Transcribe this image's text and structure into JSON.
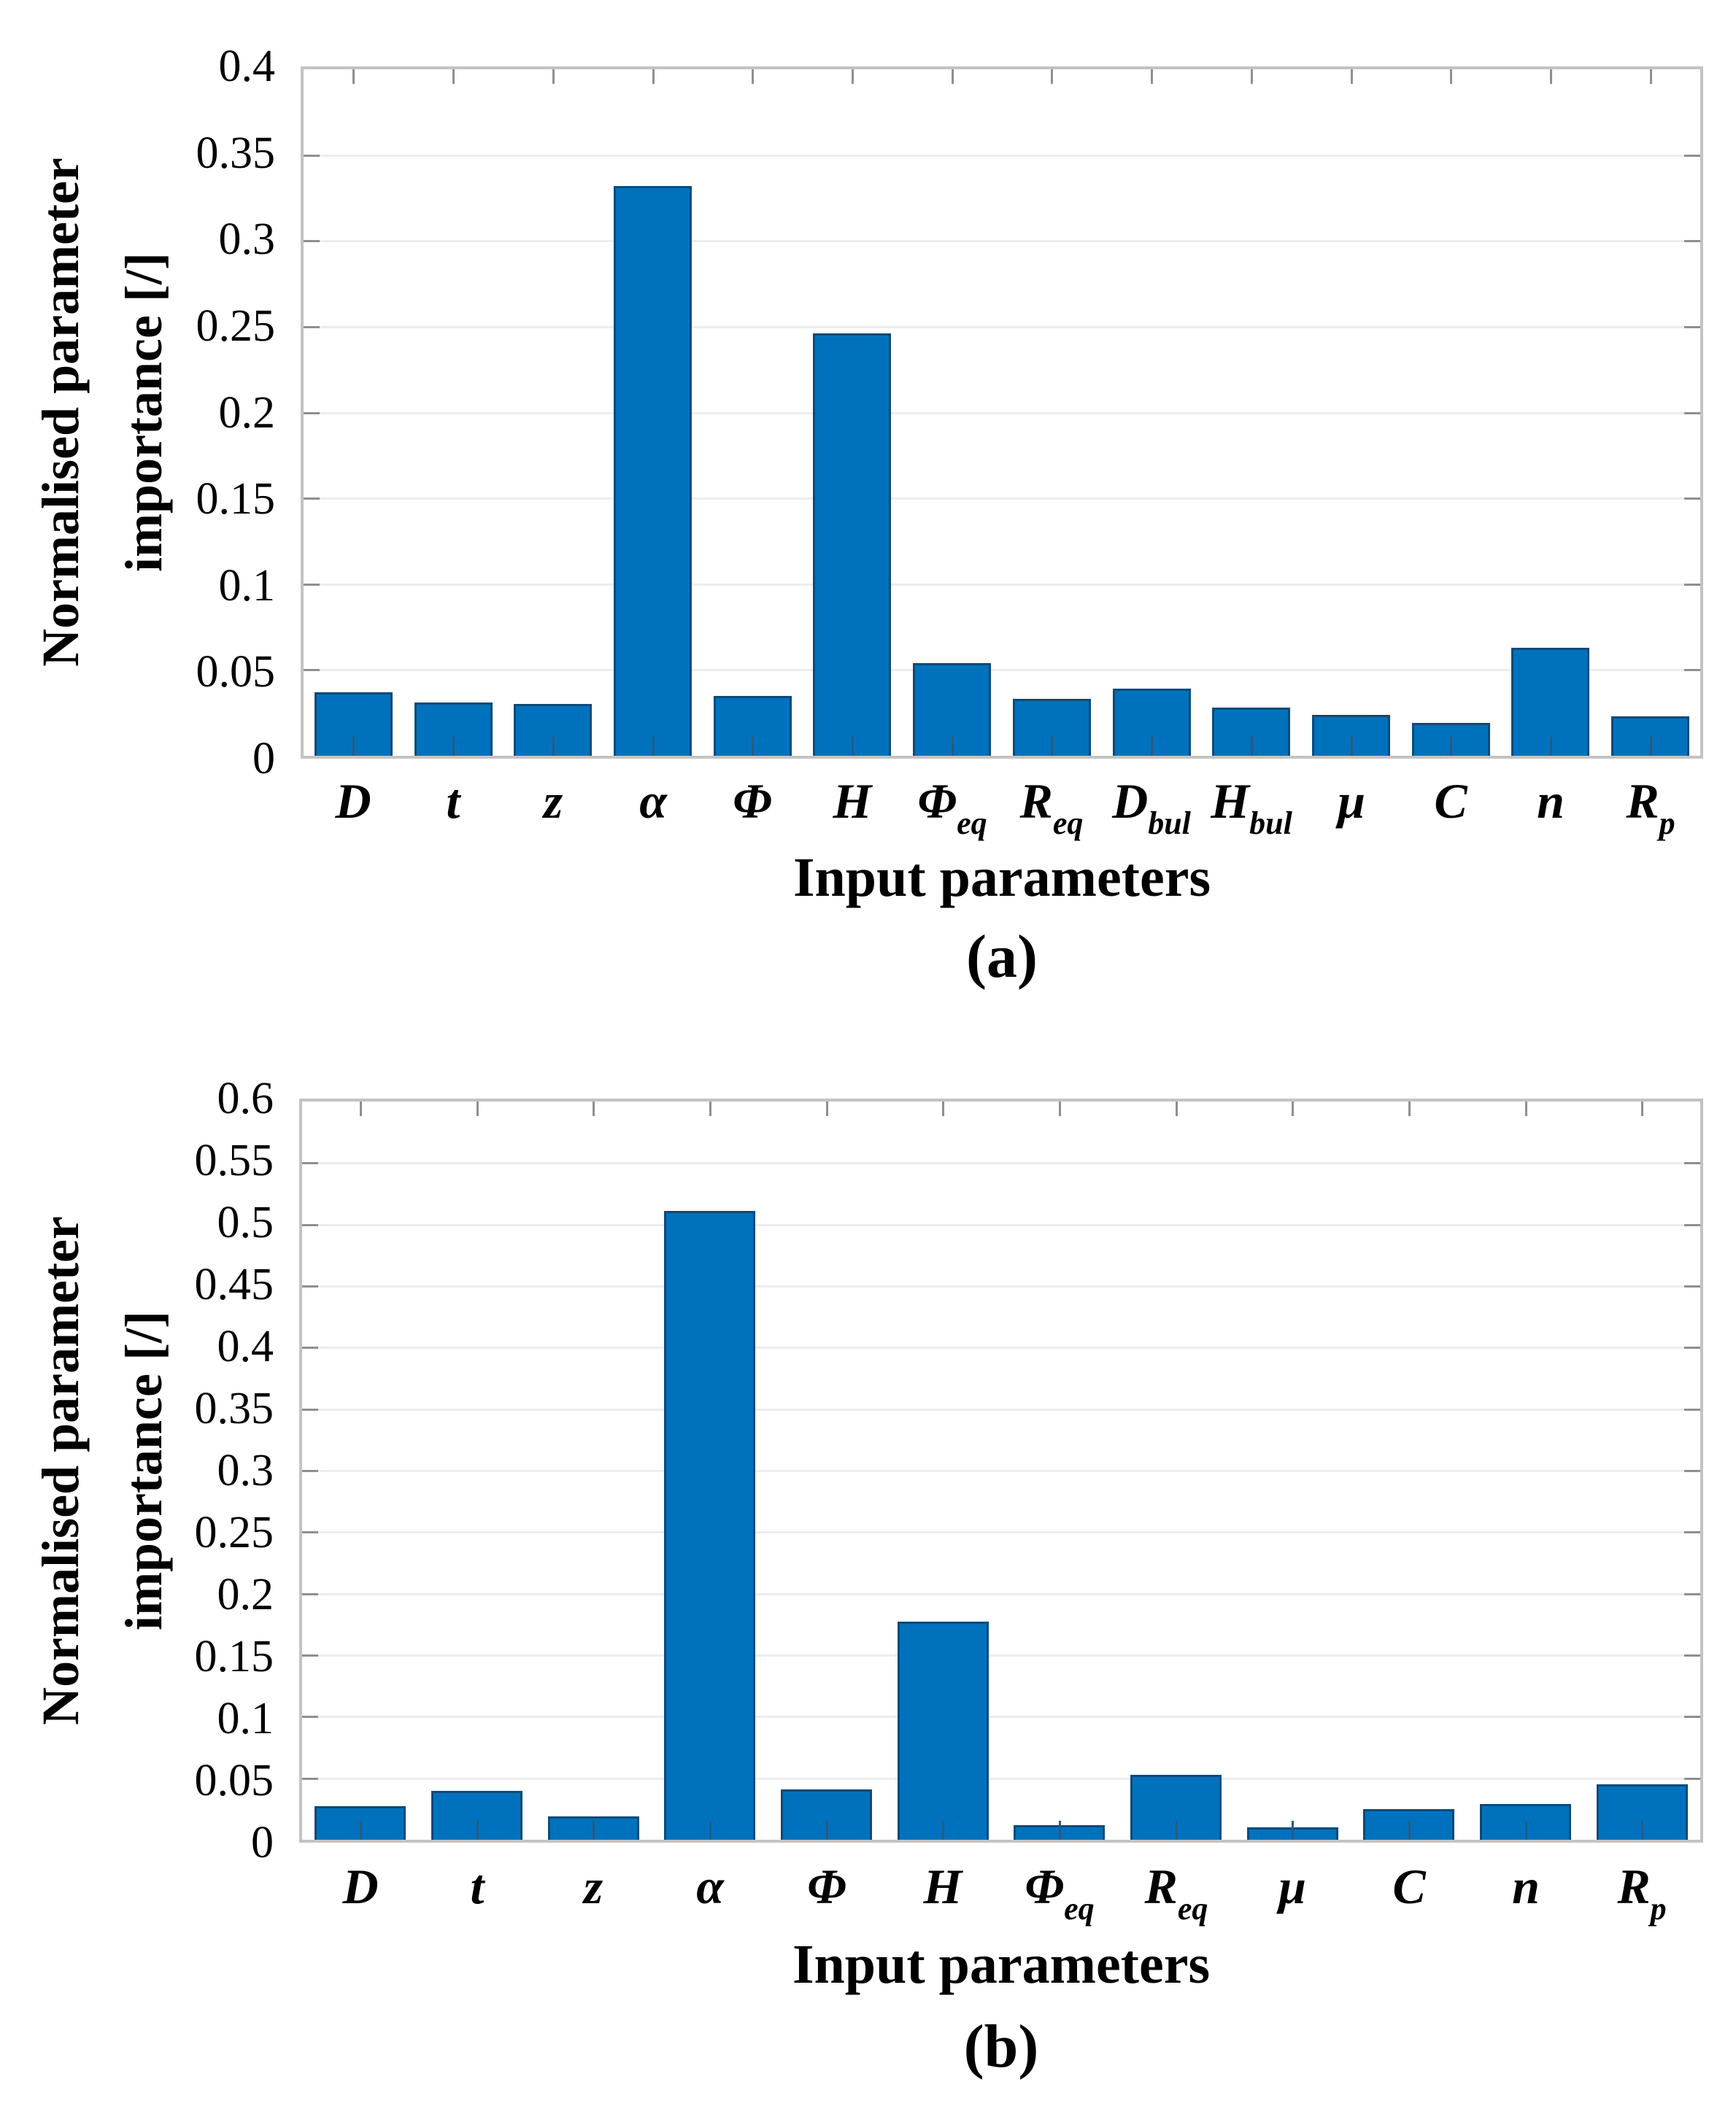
{
  "style": {
    "bar_fill": "#0072BD",
    "bar_edge": "#0d4a7a",
    "grid_color": "#ececec",
    "axis_box_color": "#c3c3c3",
    "tick_color": "#8f8f8f",
    "bar_tick_color": "#2a5a84",
    "text_color": "#000000",
    "background": "#ffffff"
  },
  "chart_data": [
    {
      "panel": "(a)",
      "type": "bar",
      "title": "",
      "xlabel": "Input parameters",
      "ylabel": "Normalised parameter importance [/]",
      "ylabel_lines": [
        "Normalised parameter",
        "importance [/]"
      ],
      "categories": [
        "D",
        "t",
        "z",
        "α",
        "Φ",
        "H",
        "Φ_eq",
        "R_eq",
        "D_bul",
        "H_bul",
        "μ",
        "C",
        "n",
        "R_p"
      ],
      "categories_rich": [
        {
          "base": "D",
          "sub": ""
        },
        {
          "base": "t",
          "sub": ""
        },
        {
          "base": "z",
          "sub": ""
        },
        {
          "base": "α",
          "sub": ""
        },
        {
          "base": "Φ",
          "sub": ""
        },
        {
          "base": "H",
          "sub": ""
        },
        {
          "base": "Φ",
          "sub": "eq"
        },
        {
          "base": "R",
          "sub": "eq"
        },
        {
          "base": "D",
          "sub": "bul"
        },
        {
          "base": "H",
          "sub": "bul"
        },
        {
          "base": "μ",
          "sub": ""
        },
        {
          "base": "C",
          "sub": ""
        },
        {
          "base": "n",
          "sub": ""
        },
        {
          "base": "R",
          "sub": "p"
        }
      ],
      "values": [
        0.037,
        0.031,
        0.03,
        0.332,
        0.035,
        0.246,
        0.054,
        0.033,
        0.039,
        0.028,
        0.024,
        0.019,
        0.063,
        0.023
      ],
      "ylim": [
        0,
        0.4
      ],
      "ytick_step": 0.05,
      "ytick_labels": [
        "0.4",
        "0.35",
        "0.3",
        "0.25",
        "0.2",
        "0.15",
        "0.1",
        "0.05",
        "0"
      ],
      "grid": "horizontal",
      "legend": "none",
      "bar_width_fraction": 0.78
    },
    {
      "panel": "(b)",
      "type": "bar",
      "title": "",
      "xlabel": "Input parameters",
      "ylabel": "Normalised parameter importance [/]",
      "ylabel_lines": [
        "Normalised parameter",
        "importance [/]"
      ],
      "categories": [
        "D",
        "t",
        "z",
        "α",
        "Φ",
        "H",
        "Φ_eq",
        "R_eq",
        "μ",
        "C",
        "n",
        "R_p"
      ],
      "categories_rich": [
        {
          "base": "D",
          "sub": ""
        },
        {
          "base": "t",
          "sub": ""
        },
        {
          "base": "z",
          "sub": ""
        },
        {
          "base": "α",
          "sub": ""
        },
        {
          "base": "Φ",
          "sub": ""
        },
        {
          "base": "H",
          "sub": ""
        },
        {
          "base": "Φ",
          "sub": "eq"
        },
        {
          "base": "R",
          "sub": "eq"
        },
        {
          "base": "μ",
          "sub": ""
        },
        {
          "base": "C",
          "sub": ""
        },
        {
          "base": "n",
          "sub": ""
        },
        {
          "base": "R",
          "sub": "p"
        }
      ],
      "values": [
        0.027,
        0.04,
        0.019,
        0.511,
        0.041,
        0.177,
        0.012,
        0.053,
        0.01,
        0.025,
        0.029,
        0.045
      ],
      "ylim": [
        0,
        0.6
      ],
      "ytick_step": 0.05,
      "ytick_labels": [
        "0.6",
        "0.55",
        "0.5",
        "0.45",
        "0.4",
        "0.35",
        "0.3",
        "0.25",
        "0.2",
        "0.15",
        "0.1",
        "0.05",
        "0"
      ],
      "grid": "horizontal",
      "legend": "none",
      "bar_width_fraction": 0.78
    }
  ]
}
